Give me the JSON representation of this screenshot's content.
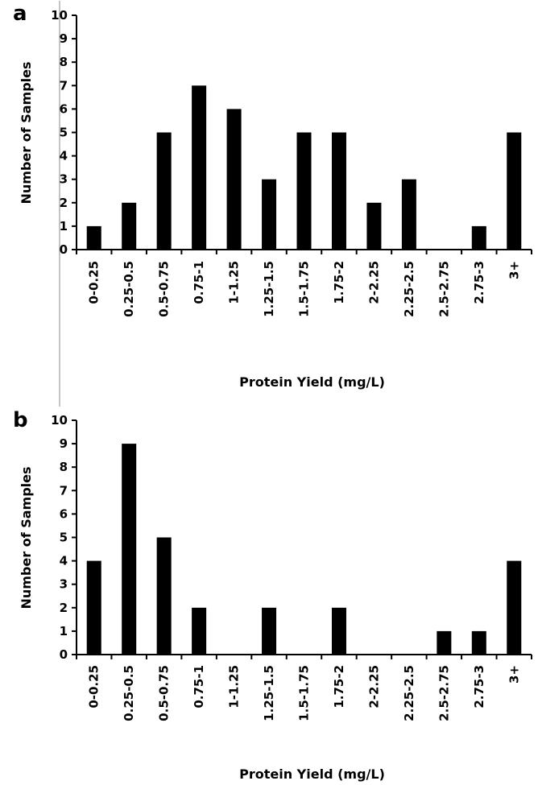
{
  "chart_data": [
    {
      "type": "bar",
      "panel_label": "a",
      "categories": [
        "0-0.25",
        "0.25-0.5",
        "0.5-0.75",
        "0.75-1",
        "1-1.25",
        "1.25-1.5",
        "1.5-1.75",
        "1.75-2",
        "2-2.25",
        "2.25-2.5",
        "2.5-2.75",
        "2.75-3",
        "3+"
      ],
      "values": [
        1,
        2,
        5,
        7,
        6,
        3,
        5,
        5,
        2,
        3,
        0,
        1,
        5
      ],
      "xlabel": "Protein Yield (mg/L)",
      "ylabel": "Number of Samples",
      "ylim": [
        0,
        10
      ],
      "yticks": [
        0,
        1,
        2,
        3,
        4,
        5,
        6,
        7,
        8,
        9,
        10
      ],
      "color": "#000000",
      "grid": false,
      "legend": "none"
    },
    {
      "type": "bar",
      "panel_label": "b",
      "categories": [
        "0-0.25",
        "0.25-0.5",
        "0.5-0.75",
        "0.75-1",
        "1-1.25",
        "1.25-1.5",
        "1.5-1.75",
        "1.75-2",
        "2-2.25",
        "2.25-2.5",
        "2.5-2.75",
        "2.75-3",
        "3+"
      ],
      "values": [
        4,
        9,
        5,
        2,
        0,
        2,
        0,
        2,
        0,
        0,
        1,
        1,
        4
      ],
      "xlabel": "Protein Yield (mg/L)",
      "ylabel": "Number of Samples",
      "ylim": [
        0,
        10
      ],
      "yticks": [
        0,
        1,
        2,
        3,
        4,
        5,
        6,
        7,
        8,
        9,
        10
      ],
      "color": "#000000",
      "grid": false,
      "legend": "none"
    }
  ]
}
